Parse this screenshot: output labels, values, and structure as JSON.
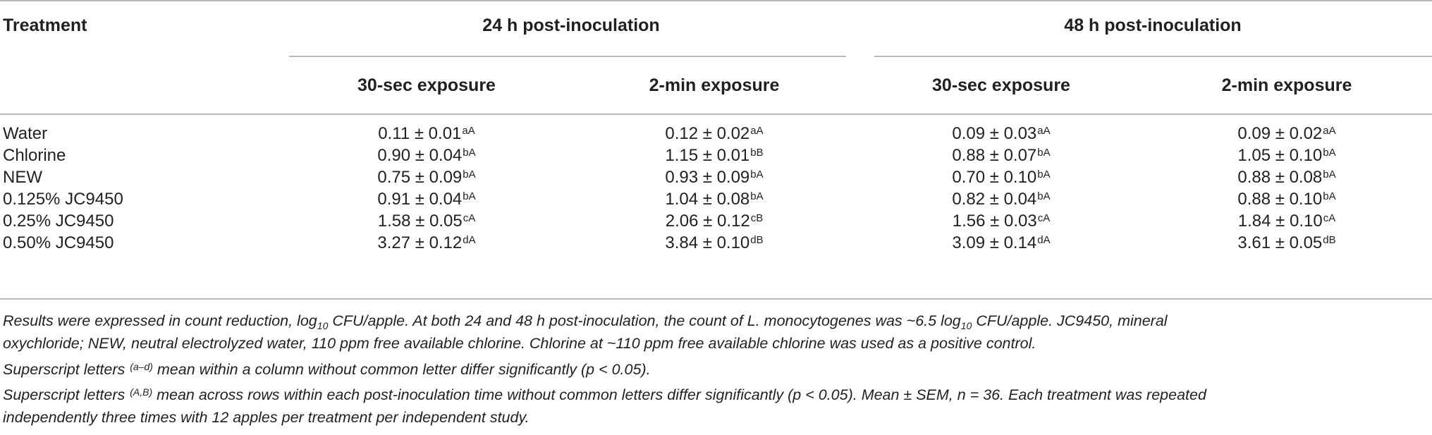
{
  "header": {
    "treatment": "Treatment",
    "group_24h": "24 h post-inoculation",
    "group_48h": "48 h post-inoculation",
    "sub_24h_30s": "30-sec exposure",
    "sub_24h_2m": "2-min exposure",
    "sub_48h_30s": "30-sec exposure",
    "sub_48h_2m": "2-min exposure"
  },
  "rows": [
    {
      "label": "Water",
      "c1": {
        "v": "0.11 ± 0.01",
        "s": "aA"
      },
      "c2": {
        "v": "0.12 ± 0.02",
        "s": "aA"
      },
      "c3": {
        "v": "0.09 ± 0.03",
        "s": "aA"
      },
      "c4": {
        "v": "0.09 ± 0.02",
        "s": "aA"
      }
    },
    {
      "label": "Chlorine",
      "c1": {
        "v": "0.90 ± 0.04",
        "s": "bA"
      },
      "c2": {
        "v": "1.15 ± 0.01",
        "s": "bB"
      },
      "c3": {
        "v": "0.88 ± 0.07",
        "s": "bA"
      },
      "c4": {
        "v": "1.05 ± 0.10",
        "s": "bA"
      }
    },
    {
      "label": "NEW",
      "c1": {
        "v": "0.75 ± 0.09",
        "s": "bA"
      },
      "c2": {
        "v": "0.93 ± 0.09",
        "s": "bA"
      },
      "c3": {
        "v": "0.70 ± 0.10",
        "s": "bA"
      },
      "c4": {
        "v": "0.88 ± 0.08",
        "s": "bA"
      }
    },
    {
      "label": "0.125% JC9450",
      "c1": {
        "v": "0.91 ± 0.04",
        "s": "bA"
      },
      "c2": {
        "v": "1.04 ± 0.08",
        "s": "bA"
      },
      "c3": {
        "v": "0.82 ± 0.04",
        "s": "bA"
      },
      "c4": {
        "v": "0.88 ± 0.10",
        "s": "bA"
      }
    },
    {
      "label": "0.25% JC9450",
      "c1": {
        "v": "1.58 ± 0.05",
        "s": "cA"
      },
      "c2": {
        "v": "2.06 ± 0.12",
        "s": "cB"
      },
      "c3": {
        "v": "1.56 ± 0.03",
        "s": "cA"
      },
      "c4": {
        "v": "1.84 ± 0.10",
        "s": "cA"
      }
    },
    {
      "label": "0.50% JC9450",
      "c1": {
        "v": "3.27 ± 0.12",
        "s": "dA"
      },
      "c2": {
        "v": "3.84 ± 0.10",
        "s": "dB"
      },
      "c3": {
        "v": "3.09 ± 0.14",
        "s": "dA"
      },
      "c4": {
        "v": "3.61 ± 0.05",
        "s": "dB"
      }
    }
  ],
  "footnotes": {
    "f1a": "Results were expressed in count reduction, log",
    "f1_sub1": "10",
    "f1b": " CFU/apple. At both 24 and 48 h post-inoculation, the count of L. monocytogenes was ~6.5 log",
    "f1_sub2": "10",
    "f1c": " CFU/apple. JC9450, mineral",
    "f2": "oxychloride; NEW, neutral electrolyzed water, 110 ppm free available chlorine. Chlorine at ~110 ppm free available chlorine was used as a positive control.",
    "f3a": "Superscript letters ",
    "f3_sup": "(a–d)",
    "f3b": " mean within a column without common letter differ significantly (p < 0.05).",
    "f4a": "Superscript letters ",
    "f4_sup": "(A,B)",
    "f4b": " mean across rows within each post-inoculation time without common letters differ significantly (p < 0.05). Mean ± SEM, n = 36. Each treatment was repeated",
    "f5": "independently three times with 12 apples per treatment per independent study."
  }
}
